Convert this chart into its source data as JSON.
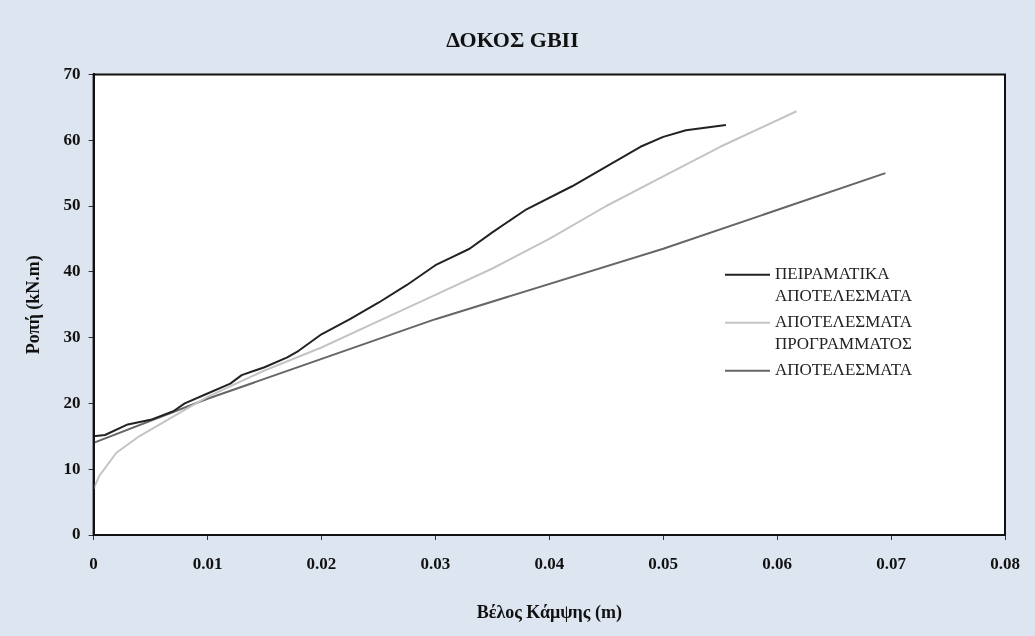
{
  "chart_data": {
    "type": "line",
    "title": "ΔΟΚΟΣ GBII",
    "xlabel": "Βέλος Κάμψης (m)",
    "ylabel": "Ροπή (kN.m)",
    "xlim": [
      0,
      0.08
    ],
    "xticks": [
      0,
      0.01,
      0.02,
      0.03,
      0.04,
      0.05,
      0.06,
      0.07,
      0.08
    ],
    "ylim": [
      0,
      70
    ],
    "yticks": [
      0,
      10,
      20,
      30,
      40,
      50,
      60,
      70
    ],
    "grid": false,
    "legend": "right",
    "marker": "none",
    "line_style": "solid",
    "series": [
      {
        "name": "ΠΕΙΡΑΜΑΤΙΚΑ ΑΠΟΤΕΛΕΣΜΑΤΑ",
        "color": "#222222",
        "x": [
          0,
          0,
          0.001,
          0.003,
          0.005,
          0.007,
          0.008,
          0.01,
          0.012,
          0.013,
          0.015,
          0.017,
          0.018,
          0.02,
          0.0225,
          0.025,
          0.0275,
          0.03,
          0.033,
          0.035,
          0.038,
          0.042,
          0.045,
          0.048,
          0.05,
          0.052,
          0.0555
        ],
        "values": [
          8,
          15,
          15.2,
          16.8,
          17.5,
          18.8,
          20,
          21.5,
          23,
          24.3,
          25.5,
          27,
          28,
          30.5,
          32.8,
          35.3,
          38,
          41,
          43.5,
          46,
          49.5,
          53,
          56,
          59,
          60.5,
          61.5,
          62.3
        ]
      },
      {
        "name": "ΑΠΟΤΕΛΕΣΜΑΤΑ ΠΡΟΓΡΑΜΜΑΤΟΣ",
        "color": "#c4c4c4",
        "x": [
          0,
          0.0005,
          0.002,
          0.004,
          0.006,
          0.008,
          0.01,
          0.015,
          0.02,
          0.025,
          0.03,
          0.035,
          0.04,
          0.045,
          0.05,
          0.055,
          0.0617
        ],
        "values": [
          7,
          9,
          12.5,
          15,
          17,
          19,
          21,
          25,
          28.5,
          32.5,
          36.5,
          40.5,
          45,
          50,
          54.5,
          59,
          64.4
        ]
      },
      {
        "name": "ΑΠΟΤΕΛΕΣΜΑΤΑ",
        "color": "#666666",
        "x": [
          0,
          0.01,
          0.03,
          0.05,
          0.0695
        ],
        "values": [
          14,
          20.7,
          32.8,
          43.5,
          55
        ]
      }
    ]
  }
}
